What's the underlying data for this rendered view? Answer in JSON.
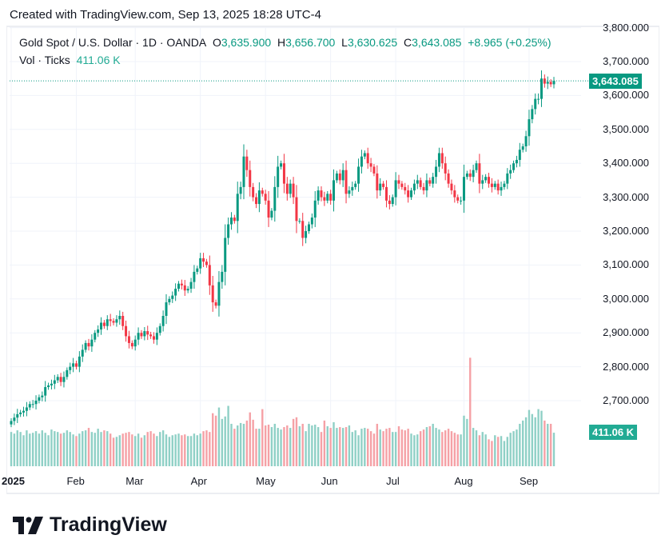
{
  "header": {
    "created": "Created with TradingView.com, Sep 13, 2025 18:28 UTC-4"
  },
  "legend": {
    "symbol": "Gold Spot / U.S. Dollar · 1D · OANDA",
    "o_label": "O",
    "o": "3,635.900",
    "h_label": "H",
    "h": "3,656.700",
    "l_label": "L",
    "l": "3,630.625",
    "c_label": "C",
    "c": "3,643.085",
    "change": "+8.965 (+0.25%)",
    "vol_label": "Vol · Ticks",
    "vol": "411.06 K"
  },
  "price_tag": "3,643.085",
  "vol_tag": "411.06 K",
  "logo": {
    "text": "TradingView",
    "icon": "tradingview-logo-icon"
  },
  "colors": {
    "up": "#089981",
    "down": "#f23645",
    "vol_up": "#8fd0c6",
    "vol_down": "#f5a1a6",
    "grid": "#f0f3fa"
  },
  "chart_data": {
    "type": "candlestick",
    "y_ticks": [
      "3,800.000",
      "3,700.000",
      "3,600.000",
      "3,500.000",
      "3,400.000",
      "3,300.000",
      "3,200.000",
      "3,100.000",
      "3,000.000",
      "2,900.000",
      "2,800.000",
      "2,700.000"
    ],
    "y_tick_values": [
      3800,
      3700,
      3600,
      3500,
      3400,
      3300,
      3200,
      3100,
      3000,
      2900,
      2800,
      2700
    ],
    "x_ticks": [
      "2025",
      "Feb",
      "Mar",
      "Apr",
      "May",
      "Jun",
      "Jul",
      "Aug",
      "Sep"
    ],
    "x_tick_index": [
      0,
      21,
      40,
      61,
      82,
      103,
      124,
      146,
      167
    ],
    "ylim": [
      2630,
      3820
    ],
    "last_close": 3643.085,
    "closes": [
      2640,
      2650,
      2660,
      2665,
      2670,
      2680,
      2690,
      2690,
      2700,
      2710,
      2715,
      2740,
      2745,
      2750,
      2760,
      2770,
      2755,
      2770,
      2790,
      2800,
      2810,
      2800,
      2830,
      2850,
      2870,
      2860,
      2880,
      2900,
      2910,
      2930,
      2920,
      2940,
      2935,
      2930,
      2940,
      2950,
      2920,
      2890,
      2870,
      2860,
      2880,
      2900,
      2890,
      2905,
      2895,
      2890,
      2880,
      2900,
      2920,
      2950,
      2990,
      3000,
      3010,
      3030,
      3045,
      3040,
      3025,
      3030,
      3050,
      3080,
      3090,
      3120,
      3110,
      3100,
      3040,
      2990,
      2980,
      3050,
      3080,
      3180,
      3220,
      3240,
      3230,
      3310,
      3330,
      3420,
      3380,
      3330,
      3300,
      3280,
      3320,
      3310,
      3290,
      3240,
      3260,
      3330,
      3390,
      3400,
      3340,
      3310,
      3340,
      3300,
      3230,
      3230,
      3180,
      3200,
      3220,
      3240,
      3290,
      3320,
      3300,
      3290,
      3310,
      3290,
      3350,
      3370,
      3350,
      3380,
      3310,
      3320,
      3330,
      3340,
      3390,
      3420,
      3430,
      3400,
      3390,
      3370,
      3320,
      3340,
      3330,
      3290,
      3280,
      3300,
      3350,
      3340,
      3330,
      3320,
      3300,
      3320,
      3340,
      3350,
      3330,
      3320,
      3350,
      3340,
      3360,
      3390,
      3430,
      3400,
      3370,
      3340,
      3320,
      3300,
      3290,
      3290,
      3360,
      3370,
      3360,
      3380,
      3400,
      3340,
      3350,
      3360,
      3340,
      3330,
      3340,
      3320,
      3330,
      3340,
      3370,
      3380,
      3400,
      3410,
      3440,
      3450,
      3480,
      3530,
      3560,
      3590,
      3590,
      3650,
      3635,
      3640,
      3633,
      3643
    ],
    "volumes_k": [
      420,
      400,
      440,
      420,
      380,
      440,
      400,
      410,
      430,
      400,
      440,
      410,
      380,
      450,
      430,
      420,
      400,
      410,
      440,
      420,
      390,
      370,
      400,
      430,
      440,
      470,
      420,
      410,
      460,
      420,
      440,
      430,
      400,
      350,
      360,
      380,
      400,
      410,
      420,
      390,
      370,
      400,
      350,
      380,
      420,
      430,
      400,
      370,
      420,
      440,
      390,
      360,
      380,
      390,
      400,
      380,
      390,
      370,
      370,
      400,
      380,
      400,
      430,
      440,
      420,
      650,
      620,
      720,
      580,
      610,
      740,
      520,
      460,
      500,
      530,
      520,
      560,
      660,
      570,
      460,
      460,
      700,
      500,
      510,
      480,
      520,
      470,
      450,
      480,
      500,
      470,
      580,
      600,
      490,
      520,
      430,
      520,
      500,
      510,
      480,
      420,
      560,
      490,
      470,
      540,
      470,
      480,
      470,
      480,
      500,
      420,
      440,
      380,
      460,
      470,
      460,
      430,
      400,
      520,
      450,
      430,
      460,
      470,
      420,
      420,
      490,
      450,
      440,
      460,
      400,
      380,
      390,
      430,
      450,
      480,
      490,
      520,
      470,
      450,
      420,
      440,
      460,
      430,
      410,
      390,
      390,
      620,
      580,
      1330,
      470,
      440,
      380,
      420,
      390,
      330,
      310,
      380,
      360,
      370,
      310,
      360,
      410,
      430,
      450,
      520,
      560,
      600,
      690,
      640,
      600,
      700,
      680,
      560,
      520,
      520,
      411
    ]
  }
}
